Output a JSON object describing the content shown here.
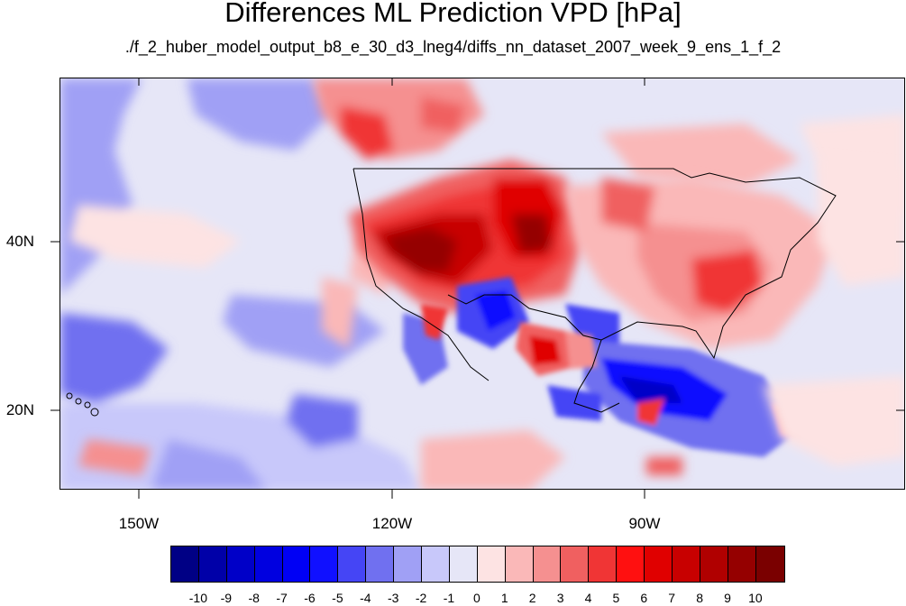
{
  "title": "Differences ML Prediction VPD [hPa]",
  "subtitle": "./f_2_huber_model_output_b8_e_30_d3_lneg4/diffs_nn_dataset_2007_week_9_ens_1_f_2",
  "lat_labels": [
    "40N",
    "20N"
  ],
  "lon_labels": [
    "150W",
    "120W",
    "90W"
  ],
  "colorbar": {
    "labels": [
      "-10",
      "-9",
      "-8",
      "-7",
      "-6",
      "-5",
      "-4",
      "-3",
      "-2",
      "-1",
      "0",
      "1",
      "2",
      "3",
      "4",
      "5",
      "6",
      "7",
      "8",
      "9",
      "10"
    ],
    "colors": [
      "#000085",
      "#0000a8",
      "#0000c8",
      "#0000e0",
      "#0000f5",
      "#1010ff",
      "#4545f5",
      "#7070f0",
      "#a0a0f5",
      "#c8c8fa",
      "#e6e6f7",
      "#fde3e3",
      "#fab8b8",
      "#f59090",
      "#f06060",
      "#f03535",
      "#ff1010",
      "#e00000",
      "#c80000",
      "#b00000",
      "#950000",
      "#7a0000"
    ]
  },
  "map": {
    "field_description": "VPD difference field with positive (red) anomalies over the western and eastern United States and negative (blue) anomalies over Mexico, the Gulf of Mexico and the Pacific",
    "colors": {
      "ocean_bg": "#e6e6f7",
      "border": "#000000"
    }
  }
}
